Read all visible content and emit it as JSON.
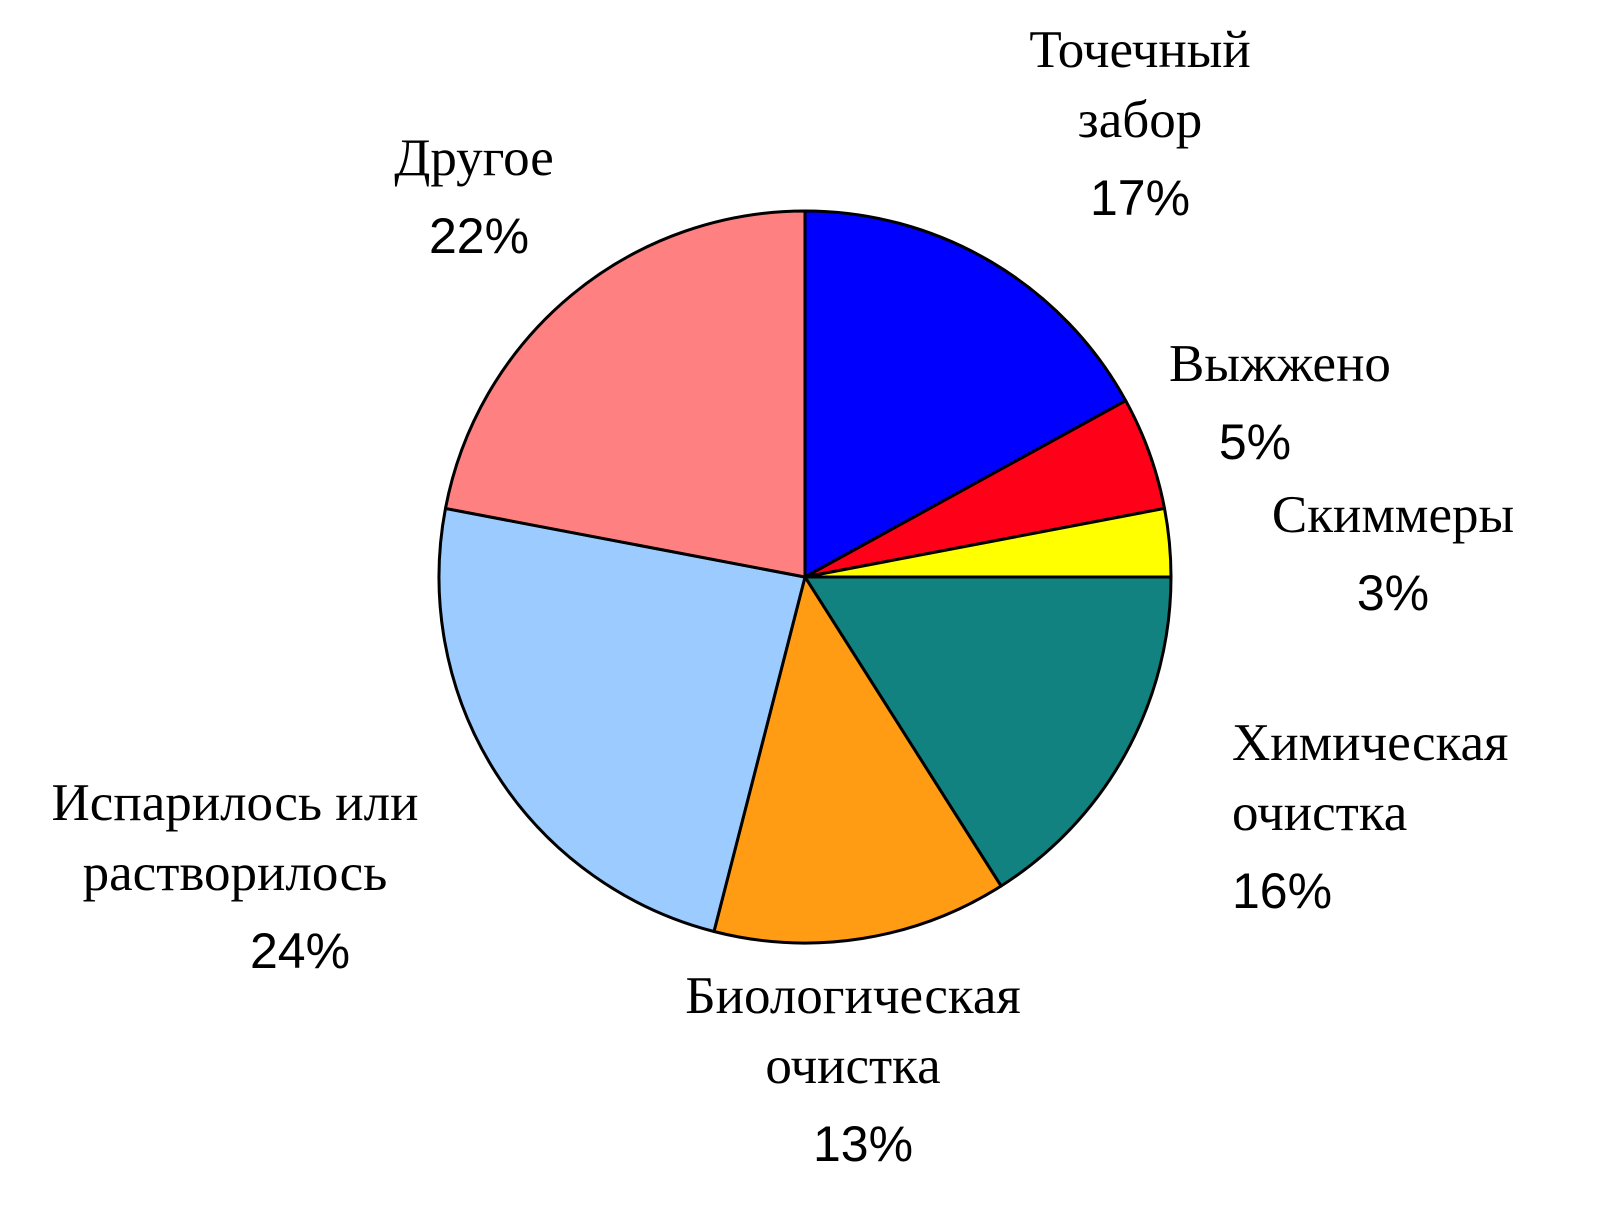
{
  "chart_data": {
    "type": "pie",
    "title": "",
    "start": "12 o'clock",
    "direction": "clockwise",
    "slices": [
      {
        "name": "Точечный забор",
        "label_lines": [
          "Точечный",
          "забор"
        ],
        "value": 17,
        "value_label": "17%",
        "color": "#0000FF"
      },
      {
        "name": "Выжжено",
        "label_lines": [
          "Выжжено"
        ],
        "value": 5,
        "value_label": "5%",
        "color": "#FF0019"
      },
      {
        "name": "Скиммеры",
        "label_lines": [
          "Скиммеры"
        ],
        "value": 3,
        "value_label": "3%",
        "color": "#FFFF00"
      },
      {
        "name": "Химическая очистка",
        "label_lines": [
          "Химическая",
          "очистка"
        ],
        "value": 16,
        "value_label": "16%",
        "color": "#128280"
      },
      {
        "name": "Биологическая очистка",
        "label_lines": [
          "Биологическая",
          "очистка"
        ],
        "value": 13,
        "value_label": "13%",
        "color": "#FF9C14"
      },
      {
        "name": "Испарилось или растворилось",
        "label_lines": [
          "Испарилось или",
          "растворилось"
        ],
        "value": 24,
        "value_label": "24%",
        "color": "#9CCCFF"
      },
      {
        "name": "Другое",
        "label_lines": [
          "Другое"
        ],
        "value": 22,
        "value_label": "22%",
        "color": "#FF8080"
      }
    ]
  }
}
